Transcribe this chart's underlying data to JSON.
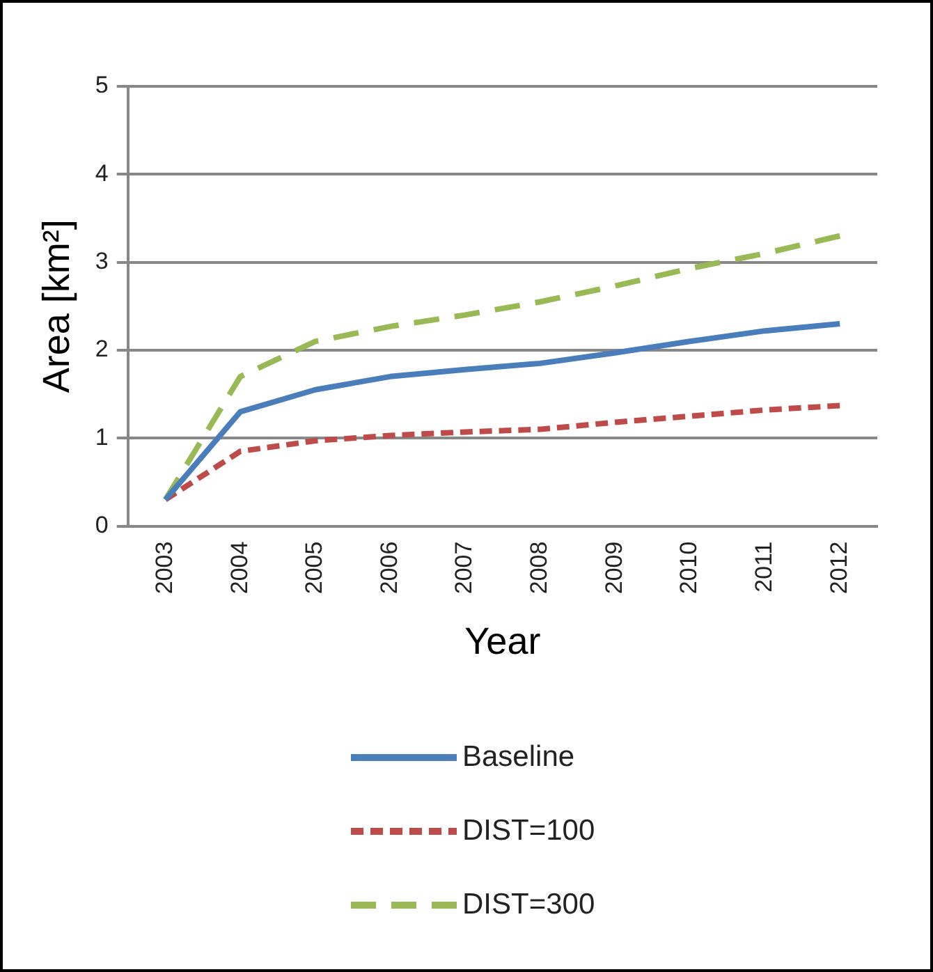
{
  "chart_data": {
    "type": "line",
    "xlabel": "Year",
    "ylabel": "Area [km²]",
    "categories": [
      "2003",
      "2004",
      "2005",
      "2006",
      "2007",
      "2008",
      "2009",
      "2010",
      "2011",
      "2012"
    ],
    "series": [
      {
        "name": "Baseline",
        "color": "#4a7ebb",
        "line_style": "solid",
        "values": [
          0.3,
          1.3,
          1.55,
          1.7,
          1.78,
          1.85,
          1.97,
          2.1,
          2.22,
          2.3
        ]
      },
      {
        "name": "DIST=100",
        "color": "#be4b48",
        "line_style": "dotted",
        "values": [
          0.3,
          0.85,
          0.97,
          1.03,
          1.07,
          1.1,
          1.18,
          1.25,
          1.32,
          1.37
        ]
      },
      {
        "name": "DIST=300",
        "color": "#98b954",
        "line_style": "dashed",
        "values": [
          0.3,
          1.7,
          2.1,
          2.27,
          2.4,
          2.55,
          2.73,
          2.93,
          3.1,
          3.3
        ]
      }
    ],
    "ylim": [
      0,
      5
    ],
    "yticks": [
      0,
      1,
      2,
      3,
      4,
      5
    ],
    "grid": "y",
    "legend": "bottom",
    "marker": "none"
  }
}
